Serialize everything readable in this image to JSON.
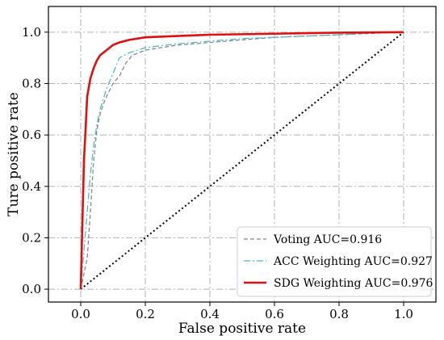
{
  "chart_data": {
    "type": "line",
    "title": "",
    "xlabel": "False positive rate",
    "ylabel": "Ture positive rate",
    "xlim": [
      -0.1,
      1.1
    ],
    "ylim": [
      -0.05,
      1.1
    ],
    "xticks": [
      0.0,
      0.2,
      0.4,
      0.6,
      0.8,
      1.0
    ],
    "yticks": [
      0.0,
      0.2,
      0.4,
      0.6,
      0.8,
      1.0
    ],
    "xtick_labels": [
      "0.0",
      "0.2",
      "0.4",
      "0.6",
      "0.8",
      "1.0"
    ],
    "ytick_labels": [
      "0.0",
      "0.2",
      "0.4",
      "0.6",
      "0.8",
      "1.0"
    ],
    "grid": true,
    "legend_position": "bottom-right",
    "series": [
      {
        "name": "Voting  AUC=0.916",
        "color": "#808080",
        "style": "dashed",
        "x": [
          0,
          0.02,
          0.03,
          0.04,
          0.05,
          0.06,
          0.07,
          0.08,
          0.1,
          0.12,
          0.14,
          0.16,
          0.2,
          0.3,
          0.4,
          0.5,
          0.6,
          0.7,
          0.8,
          0.9,
          1.0
        ],
        "y": [
          0,
          0.12,
          0.3,
          0.5,
          0.62,
          0.68,
          0.72,
          0.75,
          0.8,
          0.83,
          0.88,
          0.91,
          0.93,
          0.95,
          0.96,
          0.97,
          0.98,
          0.985,
          0.99,
          0.995,
          1.0
        ]
      },
      {
        "name": "ACC Weighting AUC=0.927",
        "color": "#45b7c6",
        "style": "dashdot",
        "x": [
          0,
          0.01,
          0.02,
          0.03,
          0.04,
          0.05,
          0.06,
          0.07,
          0.08,
          0.1,
          0.12,
          0.15,
          0.2,
          0.3,
          0.4,
          0.5,
          0.6,
          0.7,
          0.8,
          0.9,
          1.0
        ],
        "y": [
          0,
          0.15,
          0.3,
          0.45,
          0.56,
          0.64,
          0.7,
          0.74,
          0.78,
          0.84,
          0.9,
          0.92,
          0.94,
          0.955,
          0.965,
          0.975,
          0.98,
          0.985,
          0.99,
          0.997,
          1.0
        ]
      },
      {
        "name": "SDG Weighting AUC=0.976",
        "color": "#e01010",
        "style": "solid",
        "x": [
          0,
          0.005,
          0.01,
          0.015,
          0.02,
          0.03,
          0.04,
          0.05,
          0.06,
          0.08,
          0.1,
          0.12,
          0.15,
          0.2,
          0.3,
          0.4,
          0.5,
          0.6,
          0.7,
          0.8,
          0.9,
          1.0
        ],
        "y": [
          0,
          0.25,
          0.5,
          0.62,
          0.75,
          0.82,
          0.86,
          0.89,
          0.91,
          0.93,
          0.95,
          0.96,
          0.97,
          0.98,
          0.985,
          0.99,
          0.992,
          0.994,
          0.996,
          0.998,
          0.999,
          1.0
        ]
      },
      {
        "name": "",
        "color": "#000000",
        "style": "dotted",
        "x": [
          0,
          1
        ],
        "y": [
          0,
          1
        ]
      }
    ]
  }
}
